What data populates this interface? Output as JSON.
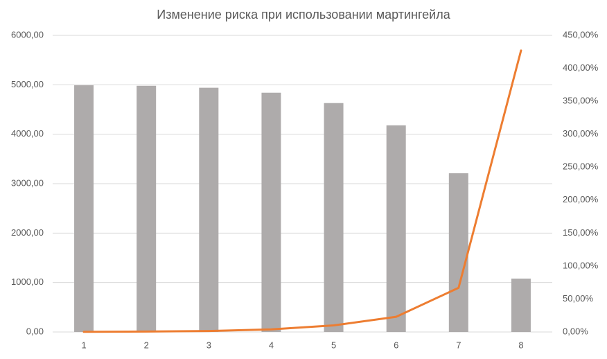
{
  "chart_data": {
    "type": "bar-line",
    "title": "Изменение риска при использовании мартингейла",
    "categories": [
      "1",
      "2",
      "3",
      "4",
      "5",
      "6",
      "7",
      "8"
    ],
    "series": [
      {
        "type": "bar",
        "color": "#aeabab",
        "values": [
          4990,
          4980,
          4940,
          4840,
          4630,
          4180,
          3210,
          1080
        ]
      },
      {
        "type": "line",
        "axis": "y2",
        "color": "#ed7d31",
        "values": [
          0.2,
          0.6,
          1.5,
          4,
          10,
          23,
          67,
          427
        ]
      }
    ],
    "ylim": [
      0,
      6000
    ],
    "yticks": [
      {
        "value": 0,
        "label": "0,00"
      },
      {
        "value": 1000,
        "label": "1000,00"
      },
      {
        "value": 2000,
        "label": "2000,00"
      },
      {
        "value": 3000,
        "label": "3000,00"
      },
      {
        "value": 4000,
        "label": "4000,00"
      },
      {
        "value": 5000,
        "label": "5000,00"
      },
      {
        "value": 6000,
        "label": "6000,00"
      }
    ],
    "y2lim": [
      0,
      450
    ],
    "y2ticks": [
      {
        "value": 0,
        "label": "0,00%"
      },
      {
        "value": 50,
        "label": "50,00%"
      },
      {
        "value": 100,
        "label": "100,00%"
      },
      {
        "value": 150,
        "label": "150,00%"
      },
      {
        "value": 200,
        "label": "200,00%"
      },
      {
        "value": 250,
        "label": "250,00%"
      },
      {
        "value": 300,
        "label": "300,00%"
      },
      {
        "value": 350,
        "label": "350,00%"
      },
      {
        "value": 400,
        "label": "400,00%"
      },
      {
        "value": 450,
        "label": "450,00%"
      }
    ],
    "grid": true
  }
}
